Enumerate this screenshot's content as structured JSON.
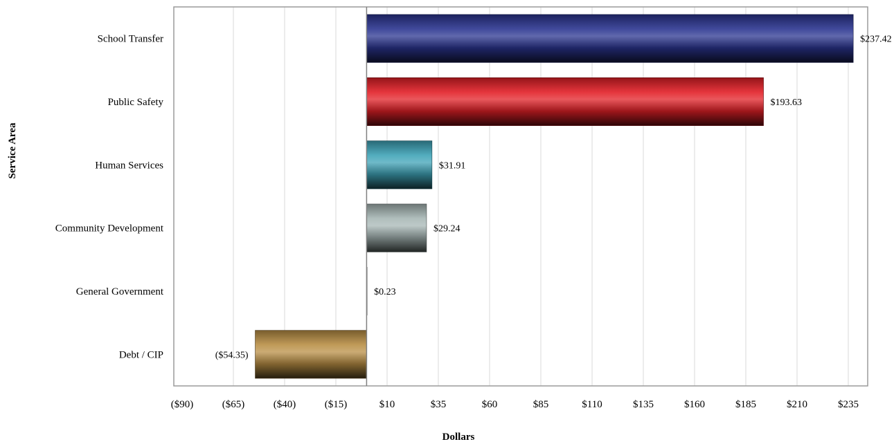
{
  "chart_data": {
    "type": "bar",
    "orientation": "horizontal",
    "title": "",
    "xlabel": "Dollars",
    "ylabel": "Service Area",
    "xlim": [
      -90,
      245
    ],
    "x_ticks": [
      -90,
      -65,
      -40,
      -15,
      10,
      35,
      60,
      85,
      110,
      135,
      160,
      185,
      210,
      235
    ],
    "x_tick_labels": [
      "($90)",
      "($65)",
      "($40)",
      "($15)",
      "$10",
      "$35",
      "$60",
      "$85",
      "$110",
      "$135",
      "$160",
      "$185",
      "$210",
      "$235"
    ],
    "grid": true,
    "legend": "none",
    "categories": [
      "School Transfer",
      "Public Safety",
      "Human Services",
      "Community Development",
      "General Government",
      "Debt / CIP"
    ],
    "values": [
      237.42,
      193.63,
      31.91,
      29.24,
      0.23,
      -54.35
    ],
    "data_labels": [
      "$237.42",
      "$193.63",
      "$31.91",
      "$29.24",
      "$0.23",
      "($54.35)"
    ],
    "colors": [
      "#2b3590",
      "#e21f26",
      "#3fa3b7",
      "#a7b7b5",
      "#7a7a7a",
      "#b98f45"
    ]
  }
}
